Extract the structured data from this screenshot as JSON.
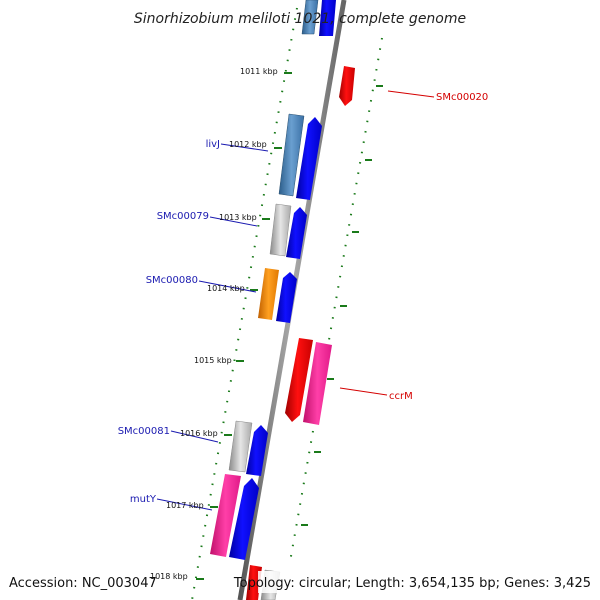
{
  "title": "Sinorhizobium meliloti 1021, complete genome",
  "footer": {
    "accession": "Accession: NC_003047",
    "topology": "Topology: circular; Length: 3,654,135 bp; Genes: 3,425"
  },
  "ticks": [
    {
      "label": "1011 kbp",
      "pos_kbp": 1011
    },
    {
      "label": "1012 kbp",
      "pos_kbp": 1012
    },
    {
      "label": "1013 kbp",
      "pos_kbp": 1013
    },
    {
      "label": "1014 kbp",
      "pos_kbp": 1014
    },
    {
      "label": "1015 kbp",
      "pos_kbp": 1015
    },
    {
      "label": "1016 kbp",
      "pos_kbp": 1016
    },
    {
      "label": "1017 kbp",
      "pos_kbp": 1017
    },
    {
      "label": "1018 kbp",
      "pos_kbp": 1018
    }
  ],
  "gene_labels": [
    {
      "name": "livJ",
      "strand": "reverse"
    },
    {
      "name": "SMc00079",
      "strand": "reverse"
    },
    {
      "name": "SMc00080",
      "strand": "reverse"
    },
    {
      "name": "SMc00081",
      "strand": "reverse"
    },
    {
      "name": "mutY",
      "strand": "reverse"
    },
    {
      "name": "SMc00020",
      "strand": "forward"
    },
    {
      "name": "ccrM",
      "strand": "forward"
    }
  ],
  "colors": {
    "reverse_label": "#1a1ab0",
    "forward_label": "#d40000",
    "cds_blue": "#0000ee",
    "forward_red": "#ee0000",
    "pink": "#ff2299",
    "orange": "#ff8c00",
    "steel": "#4682b4",
    "gray": "#b0b0b0",
    "tick_green": "#1a7a1a",
    "backbone": "#777777"
  }
}
